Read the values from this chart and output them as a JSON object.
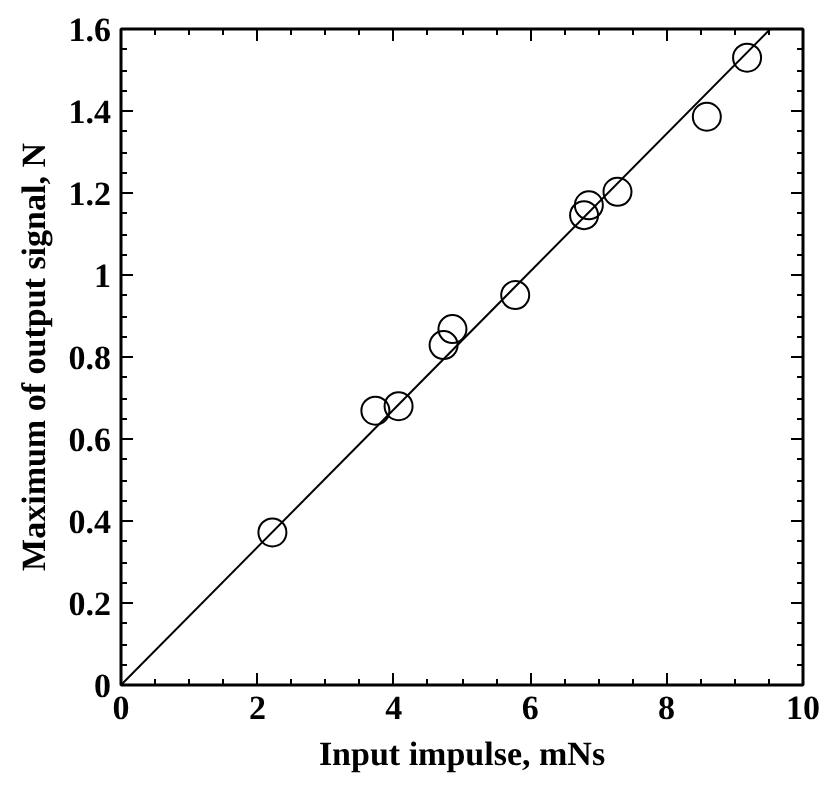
{
  "chart_data": {
    "type": "scatter",
    "xlabel": "Input impulse, mNs",
    "ylabel": "Maximum of output signal, N",
    "xlim": [
      0,
      10
    ],
    "ylim": [
      0,
      1.6
    ],
    "xticks": [
      0,
      2,
      4,
      6,
      8,
      10
    ],
    "yticks": [
      0,
      0.2,
      0.4,
      0.6,
      0.8,
      1,
      1.2,
      1.4,
      1.6
    ],
    "grid": false,
    "series": [
      {
        "marker": "circle",
        "color": "#000000",
        "x": [
          2.22,
          3.73,
          4.07,
          4.73,
          4.86,
          5.78,
          6.79,
          6.86,
          7.28,
          8.59,
          9.18
        ],
        "values": [
          0.372,
          0.669,
          0.68,
          0.829,
          0.868,
          0.951,
          1.146,
          1.17,
          1.203,
          1.386,
          1.53
        ]
      },
      {
        "type": "line",
        "color": "#000000",
        "line_style": "solid",
        "x": [
          0,
          9.52
        ],
        "values": [
          0,
          1.6
        ]
      }
    ]
  }
}
